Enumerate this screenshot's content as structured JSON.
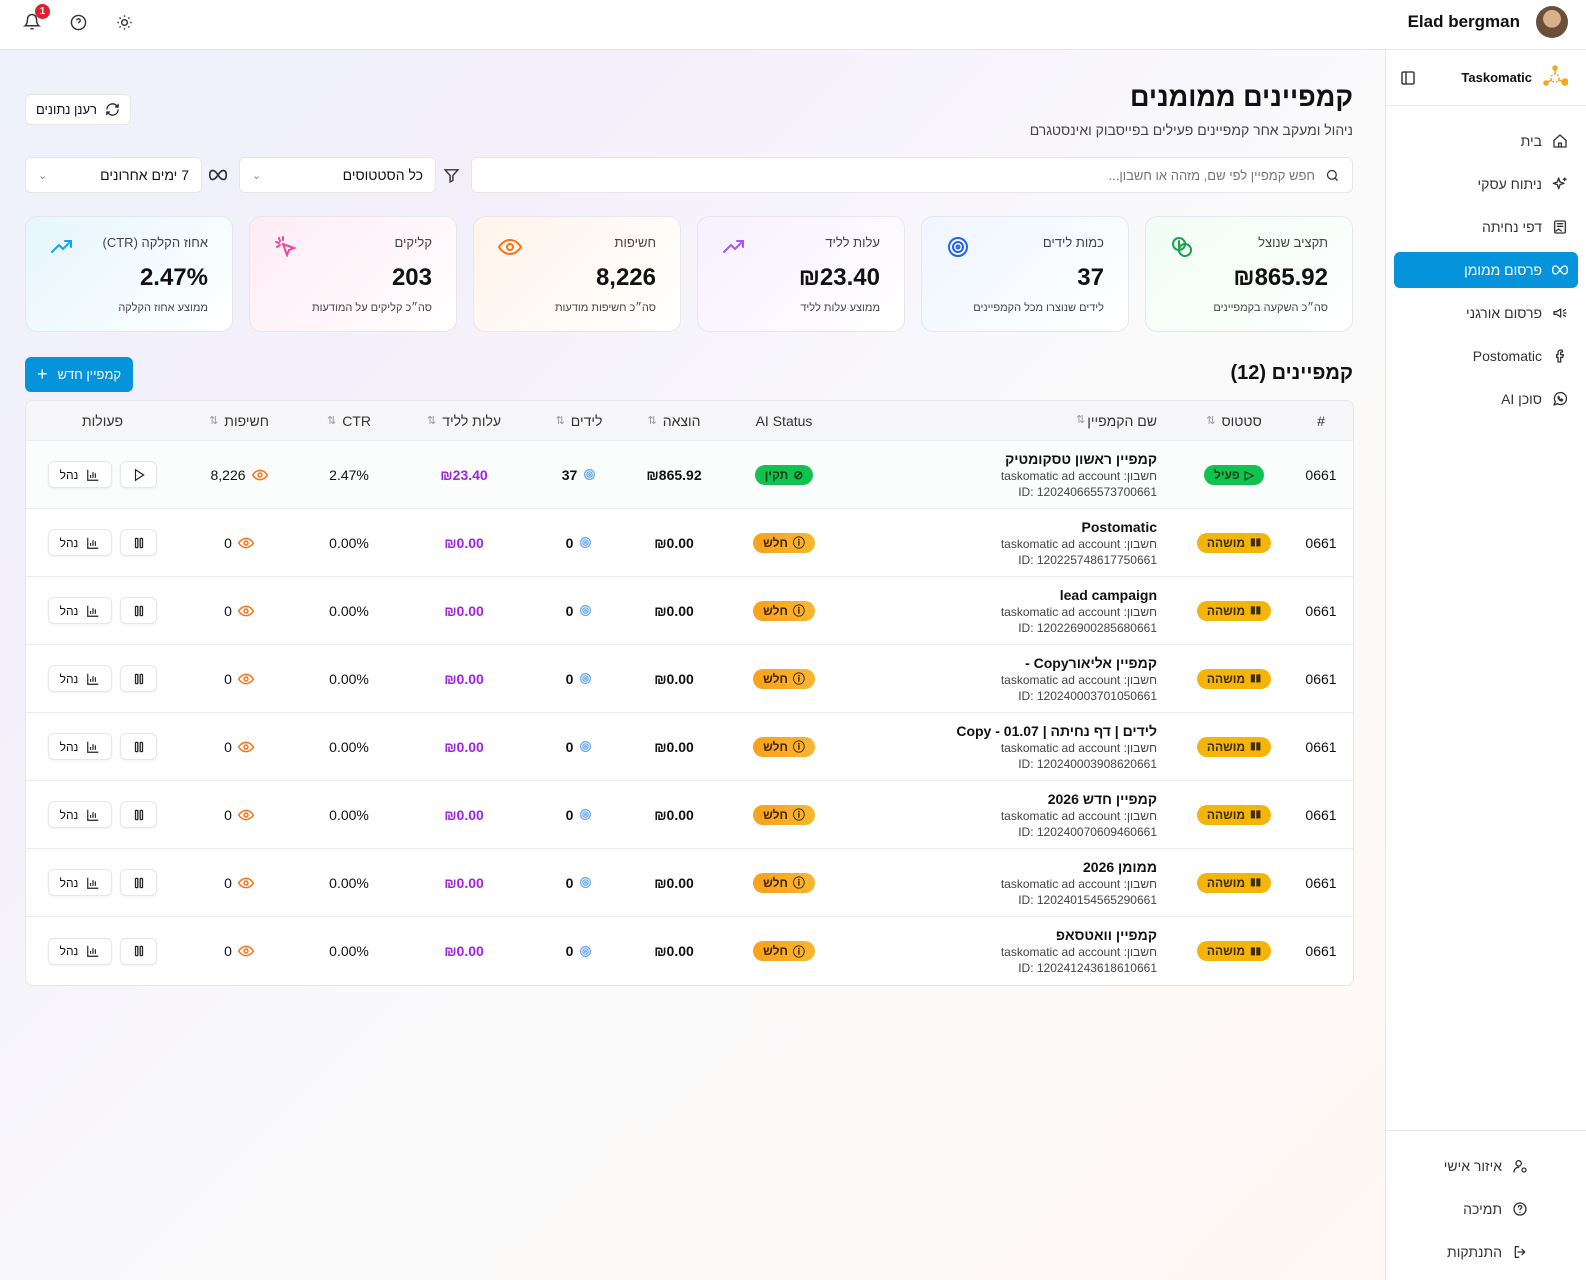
{
  "topbar": {
    "user_name": "Elad bergman",
    "notification_count": "1"
  },
  "sidebar": {
    "brand": "Taskomatic",
    "items": [
      {
        "label": "בית",
        "icon": "home-icon"
      },
      {
        "label": "ניתוח עסקי",
        "icon": "sparkles-icon"
      },
      {
        "label": "דפי נחיתה",
        "icon": "landing-page-icon"
      },
      {
        "label": "פרסום ממומן",
        "icon": "meta-icon",
        "active": true
      },
      {
        "label": "פרסום אורגני",
        "icon": "megaphone-icon"
      },
      {
        "label": "Postomatic",
        "icon": "facebook-icon"
      },
      {
        "label": "סוכן AI",
        "icon": "whatsapp-icon"
      }
    ],
    "bottom": [
      {
        "label": "איזור אישי",
        "icon": "user-settings-icon"
      },
      {
        "label": "תמיכה",
        "icon": "help-icon"
      },
      {
        "label": "התנתקות",
        "icon": "logout-icon"
      }
    ]
  },
  "page": {
    "title": "קמפיינים ממומנים",
    "subtitle": "ניהול ומעקב אחר קמפיינים פעילים בפייסבוק ואינסטגרם",
    "refresh_label": "רענן נתונים"
  },
  "filters": {
    "search_placeholder": "חפש קמפיין לפי שם, מזהה או חשבון...",
    "status_value": "כל הסטטוסים",
    "range_value": "7 ימים אחרונים"
  },
  "cards": [
    {
      "title": "תקציב שנוצל",
      "value": "₪865.92",
      "desc": "סה״כ השקעה בקמפיינים",
      "color": "#16a34a",
      "bg": "linear-gradient(135deg,#f0fdf4,#ffffff)"
    },
    {
      "title": "כמות לידים",
      "value": "37",
      "desc": "לידים שנוצרו מכל הקמפיינים",
      "color": "#2563eb",
      "bg": "linear-gradient(135deg,#eff6ff,#ffffff)"
    },
    {
      "title": "עלות לליד",
      "value": "₪23.40",
      "desc": "ממוצע עלות לליד",
      "color": "#a855f7",
      "bg": "linear-gradient(135deg,#f7f0ff,#ffffff)"
    },
    {
      "title": "חשיפות",
      "value": "8,226",
      "desc": "סה״כ חשיפות מודעות",
      "color": "#f97316",
      "bg": "linear-gradient(135deg,#fff4ea,#ffffff)"
    },
    {
      "title": "קליקים",
      "value": "203",
      "desc": "סה״כ קליקים על המודעות",
      "color": "#ec4899",
      "bg": "linear-gradient(135deg,#fdecf4,#ffffff)"
    },
    {
      "title": "אחוז הקלקה (CTR)",
      "value": "2.47%",
      "desc": "ממוצע אחוז הקלקה",
      "color": "#0ea5e9",
      "bg": "linear-gradient(135deg,#e6f6fe,#ffffff)"
    }
  ],
  "campaigns": {
    "title": "קמפיינים (12)",
    "new_label": "קמפיין חדש",
    "headers": [
      "#",
      "סטטוס",
      "שם הקמפיין",
      "AI Status",
      "הוצאה",
      "לידים",
      "עלות לליד",
      "CTR",
      "חשיפות",
      "פעולות"
    ],
    "account_prefix": "חשבון:",
    "manage_label": "נהל",
    "rows": [
      {
        "num": "0661",
        "status": "פעיל",
        "status_kind": "green",
        "name": "קמפיין ראשון טסקומטיק",
        "account": "taskomatic ad account",
        "id": "ID: 120240665573700661",
        "ai": "תקין",
        "ai_kind": "green",
        "spend": "₪865.92",
        "leads": "37",
        "cpl": "₪23.40",
        "ctr": "2.47%",
        "impr": "8,226",
        "action": "play"
      },
      {
        "num": "0661",
        "status": "מושהה",
        "status_kind": "yellow",
        "name": "Postomatic",
        "account": "taskomatic ad account",
        "id": "ID: 120225748617750661",
        "ai": "חלש",
        "ai_kind": "orange",
        "spend": "₪0.00",
        "leads": "0",
        "cpl": "₪0.00",
        "ctr": "0.00%",
        "impr": "0",
        "action": "pause"
      },
      {
        "num": "0661",
        "status": "מושהה",
        "status_kind": "yellow",
        "name": "lead campaign",
        "account": "taskomatic ad account",
        "id": "ID: 120226900285680661",
        "ai": "חלש",
        "ai_kind": "orange",
        "spend": "₪0.00",
        "leads": "0",
        "cpl": "₪0.00",
        "ctr": "0.00%",
        "impr": "0",
        "action": "pause"
      },
      {
        "num": "0661",
        "status": "מושהה",
        "status_kind": "yellow",
        "name": "קמפיין אליאורCopy -",
        "account": "taskomatic ad account",
        "id": "ID: 120240003701050661",
        "ai": "חלש",
        "ai_kind": "orange",
        "spend": "₪0.00",
        "leads": "0",
        "cpl": "₪0.00",
        "ctr": "0.00%",
        "impr": "0",
        "action": "pause"
      },
      {
        "num": "0661",
        "status": "מושהה",
        "status_kind": "yellow",
        "name": "לידים | דף נחיתה | Copy - 01.07",
        "account": "taskomatic ad account",
        "id": "ID: 120240003908620661",
        "ai": "חלש",
        "ai_kind": "orange",
        "spend": "₪0.00",
        "leads": "0",
        "cpl": "₪0.00",
        "ctr": "0.00%",
        "impr": "0",
        "action": "pause"
      },
      {
        "num": "0661",
        "status": "מושהה",
        "status_kind": "yellow",
        "name": "קמפיין חדש 2026",
        "account": "taskomatic ad account",
        "id": "ID: 120240070609460661",
        "ai": "חלש",
        "ai_kind": "orange",
        "spend": "₪0.00",
        "leads": "0",
        "cpl": "₪0.00",
        "ctr": "0.00%",
        "impr": "0",
        "action": "pause"
      },
      {
        "num": "0661",
        "status": "מושהה",
        "status_kind": "yellow",
        "name": "ממומן 2026",
        "account": "taskomatic ad account",
        "id": "ID: 120240154565290661",
        "ai": "חלש",
        "ai_kind": "orange",
        "spend": "₪0.00",
        "leads": "0",
        "cpl": "₪0.00",
        "ctr": "0.00%",
        "impr": "0",
        "action": "pause"
      },
      {
        "num": "0661",
        "status": "מושהה",
        "status_kind": "yellow",
        "name": "קמפיין וואטסאפ",
        "account": "taskomatic ad account",
        "id": "ID: 120241243618610661",
        "ai": "חלש",
        "ai_kind": "orange",
        "spend": "₪0.00",
        "leads": "0",
        "cpl": "₪0.00",
        "ctr": "0.00%",
        "impr": "0",
        "action": "pause"
      }
    ]
  }
}
